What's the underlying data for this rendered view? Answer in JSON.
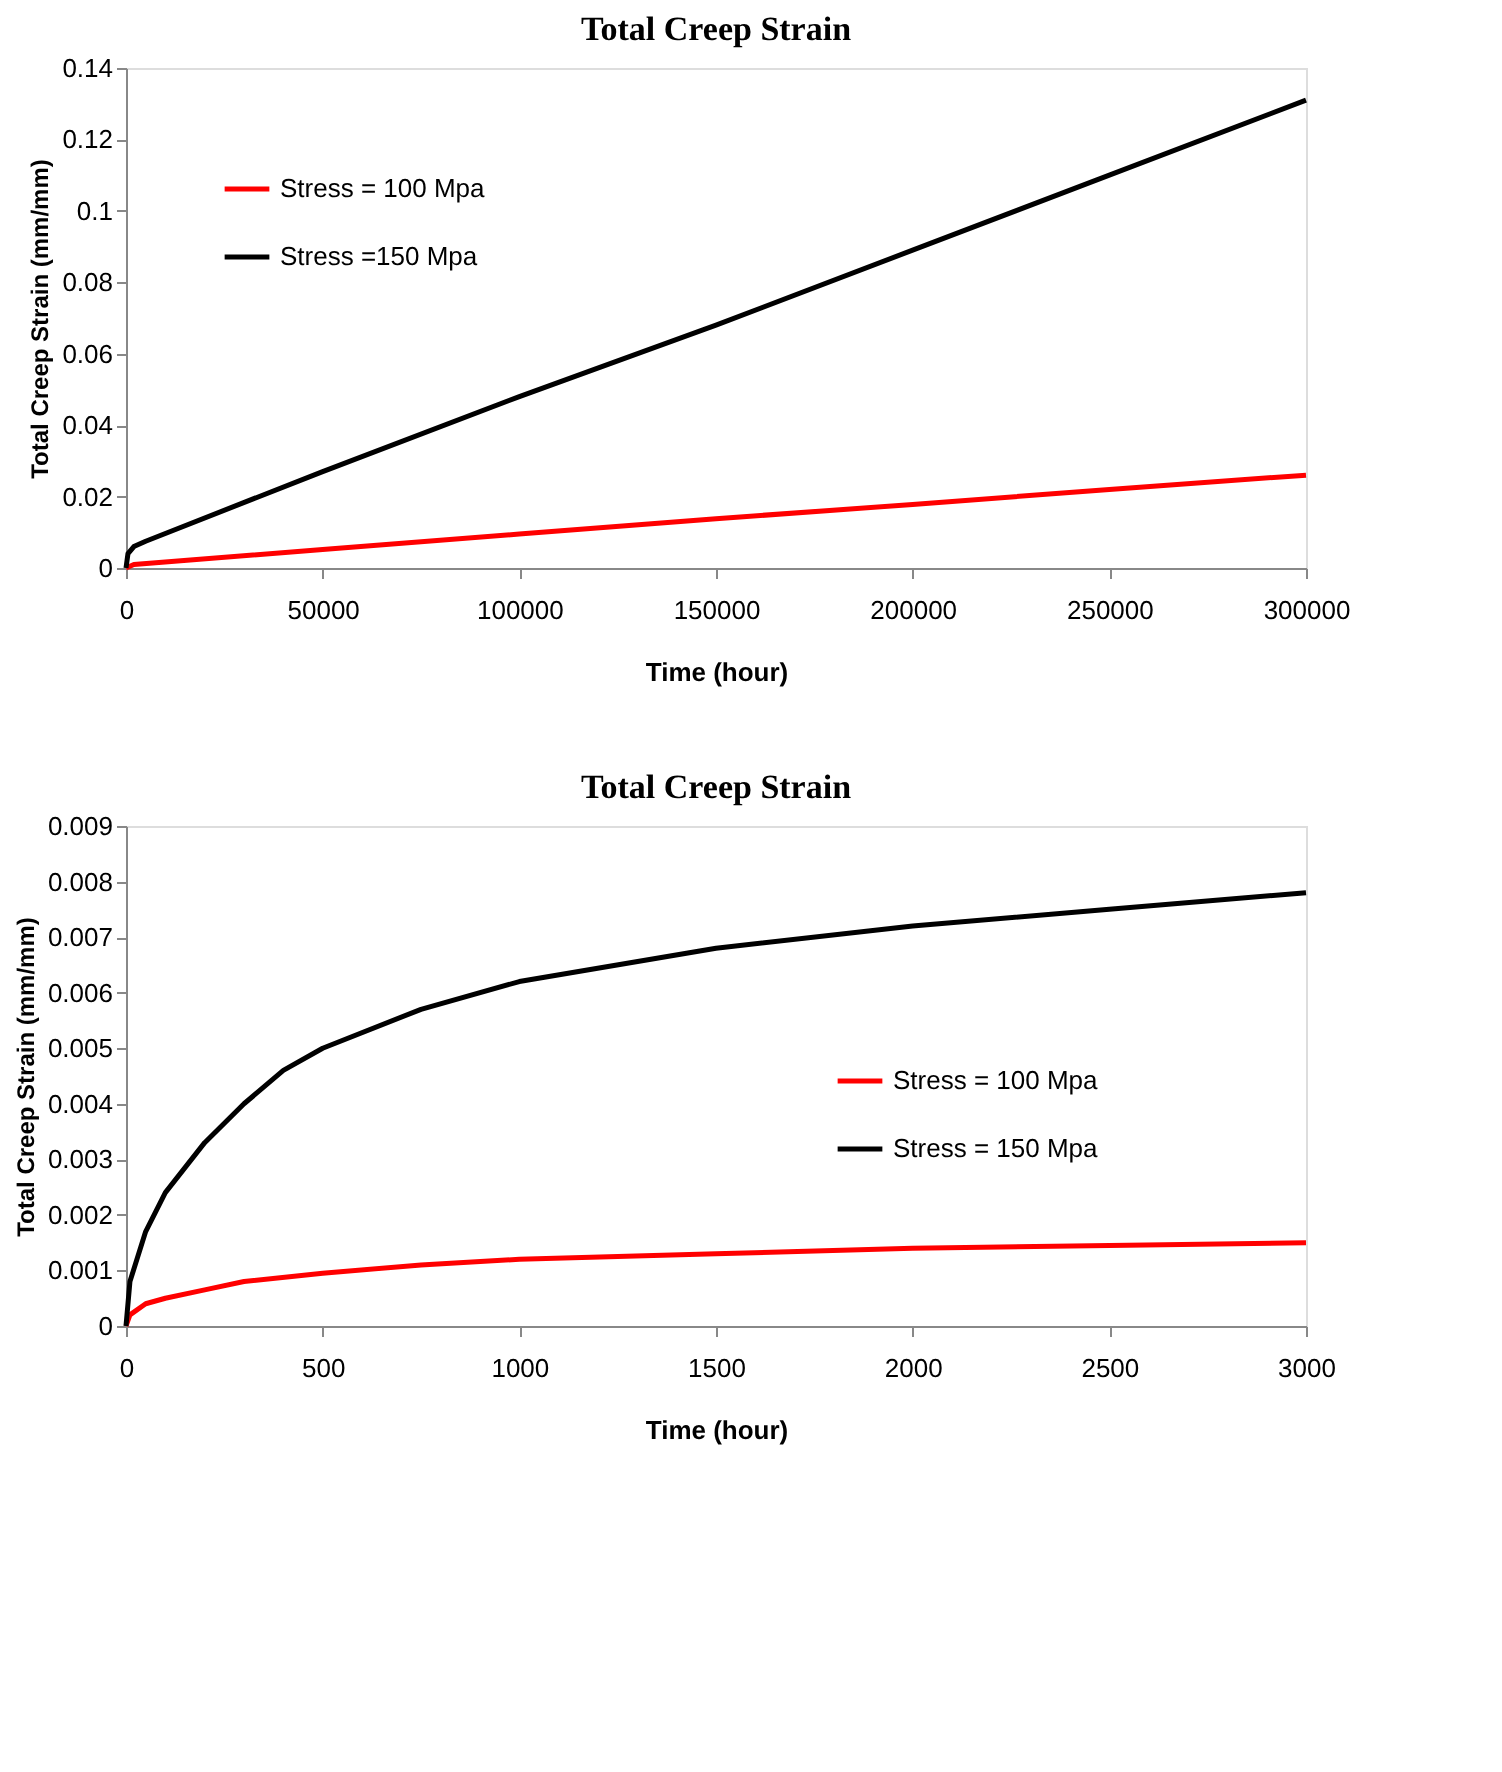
{
  "chart_data": [
    {
      "type": "line",
      "title": "Total Creep Strain",
      "xlabel": "Time (hour)",
      "ylabel": "Total Creep Strain (mm/mm)",
      "xlim": [
        0,
        300000
      ],
      "xticks": [
        0,
        50000,
        100000,
        150000,
        200000,
        250000,
        300000
      ],
      "ylim": [
        0,
        0.14
      ],
      "yticks": [
        0,
        0.02,
        0.04,
        0.06,
        0.08,
        0.1,
        0.12,
        0.14
      ],
      "grid": false,
      "legend": "top left",
      "line_style": "solid",
      "marker": "none",
      "series": [
        {
          "name": "Stress = 100 Mpa",
          "color": "#ff0000",
          "x": [
            0,
            2000,
            50000,
            100000,
            150000,
            200000,
            250000,
            300000
          ],
          "values": [
            0,
            0.001,
            0.0052,
            0.0095,
            0.0138,
            0.0178,
            0.022,
            0.026
          ]
        },
        {
          "name": "Stress =150 Mpa",
          "color": "#000000",
          "x": [
            0,
            500,
            2000,
            5000,
            50000,
            100000,
            150000,
            200000,
            250000,
            300000
          ],
          "values": [
            0,
            0.004,
            0.006,
            0.0075,
            0.027,
            0.048,
            0.068,
            0.089,
            0.11,
            0.131
          ]
        }
      ]
    },
    {
      "type": "line",
      "title": "Total Creep Strain",
      "xlabel": "Time (hour)",
      "ylabel": "Total Creep Strain (mm/mm)",
      "xlim": [
        0,
        3000
      ],
      "xticks": [
        0,
        500,
        1000,
        1500,
        2000,
        2500,
        3000
      ],
      "ylim": [
        0,
        0.009
      ],
      "yticks": [
        0,
        0.001,
        0.002,
        0.003,
        0.004,
        0.005,
        0.006,
        0.007,
        0.008,
        0.009
      ],
      "grid": false,
      "legend": "right",
      "line_style": "solid",
      "marker": "none",
      "series": [
        {
          "name": "Stress = 100 Mpa",
          "color": "#ff0000",
          "x": [
            0,
            10,
            50,
            100,
            200,
            300,
            500,
            750,
            1000,
            1500,
            2000,
            2500,
            3000
          ],
          "values": [
            0,
            0.0002,
            0.0004,
            0.0005,
            0.00065,
            0.0008,
            0.00095,
            0.0011,
            0.0012,
            0.0013,
            0.0014,
            0.00145,
            0.0015
          ]
        },
        {
          "name": "Stress = 150 Mpa",
          "color": "#000000",
          "x": [
            0,
            10,
            50,
            100,
            200,
            300,
            400,
            500,
            750,
            1000,
            1500,
            2000,
            2500,
            3000
          ],
          "values": [
            0,
            0.0008,
            0.0017,
            0.0024,
            0.0033,
            0.004,
            0.0046,
            0.005,
            0.0057,
            0.0062,
            0.0068,
            0.0072,
            0.0075,
            0.0078
          ]
        }
      ]
    }
  ]
}
